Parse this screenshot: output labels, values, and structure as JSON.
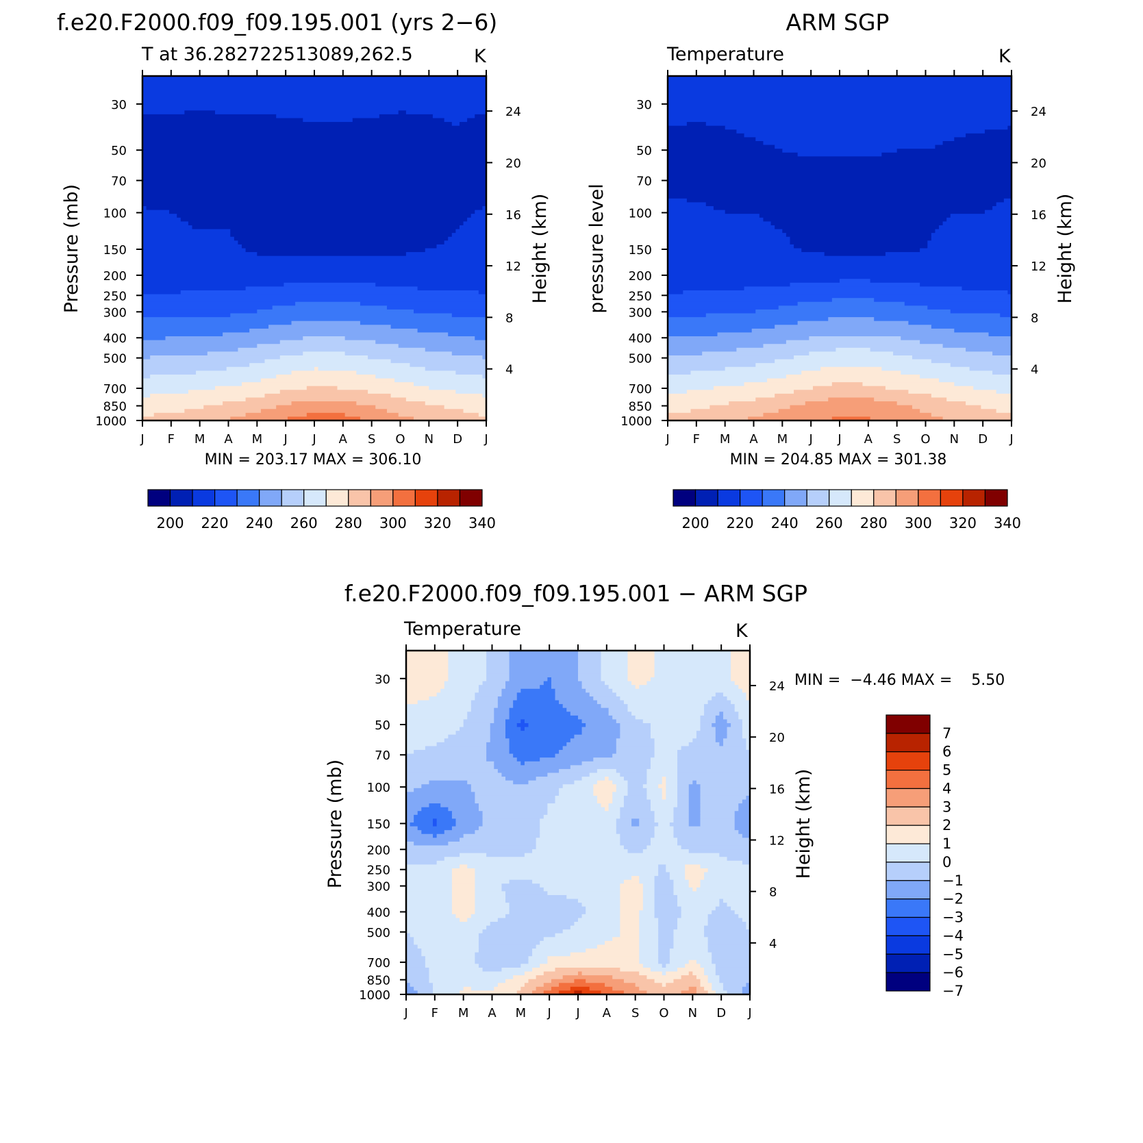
{
  "chart_data": [
    {
      "id": "model",
      "type": "heatmap",
      "title": "f.e20.F2000.f09_f09.195.001 (yrs 2−6)",
      "subtitle_left": "T at 36.282722513089,262.5",
      "subtitle_right": "K",
      "ylabel_left": "Pressure (mb)",
      "ylabel_right": "Height (km)",
      "minmax_text": "MIN = 203.17 MAX = 306.10",
      "x_ticks": [
        "J",
        "F",
        "M",
        "A",
        "M",
        "J",
        "J",
        "A",
        "S",
        "O",
        "N",
        "D",
        "J"
      ],
      "y_ticks": [
        "30",
        "50",
        "70",
        "100",
        "150",
        "200",
        "250",
        "300",
        "400",
        "500",
        "700",
        "850",
        "1000"
      ],
      "height_ticks": [
        "24",
        "20",
        "16",
        "12",
        "8",
        "4"
      ],
      "levels": [
        200,
        210,
        220,
        230,
        240,
        250,
        260,
        270,
        280,
        290,
        300,
        310,
        320,
        330,
        340
      ],
      "colorbar_labels": [
        "200",
        "220",
        "240",
        "260",
        "280",
        "300",
        "320",
        "340"
      ],
      "grid_pressure": [
        30,
        50,
        70,
        100,
        150,
        200,
        250,
        300,
        400,
        500,
        700,
        850,
        1000
      ],
      "values_by_level": [
        [
          211,
          211,
          211,
          211,
          211,
          212,
          213,
          213,
          212,
          211,
          211,
          211,
          211
        ],
        [
          206,
          206,
          205,
          206,
          206,
          205,
          205,
          205,
          205,
          205,
          207,
          209,
          206
        ],
        [
          205,
          205,
          205,
          205,
          204,
          204,
          204,
          204,
          204,
          205,
          206,
          206,
          205
        ],
        [
          211,
          210,
          209,
          209,
          206,
          205,
          205,
          205,
          205,
          206,
          207,
          209,
          211
        ],
        [
          212,
          212,
          211,
          211,
          209,
          208,
          208,
          208,
          208,
          209,
          210,
          211,
          212
        ],
        [
          213,
          213,
          213,
          213,
          214,
          215,
          216,
          216,
          215,
          214,
          213,
          213,
          213
        ],
        [
          221,
          221,
          222,
          222,
          224,
          226,
          227,
          227,
          226,
          224,
          223,
          222,
          221
        ],
        [
          227,
          227,
          228,
          228,
          230,
          233,
          235,
          234,
          233,
          231,
          229,
          228,
          227
        ],
        [
          239,
          240,
          241,
          242,
          245,
          248,
          251,
          250,
          248,
          245,
          243,
          241,
          239
        ],
        [
          250,
          251,
          252,
          254,
          257,
          261,
          264,
          263,
          260,
          257,
          254,
          252,
          250
        ],
        [
          266,
          267,
          269,
          271,
          274,
          278,
          281,
          280,
          277,
          274,
          270,
          268,
          266
        ],
        [
          275,
          276,
          279,
          282,
          286,
          291,
          295,
          294,
          290,
          285,
          281,
          278,
          275
        ],
        [
          282,
          284,
          287,
          291,
          295,
          301,
          305,
          304,
          299,
          293,
          288,
          285,
          282
        ]
      ]
    },
    {
      "id": "obs",
      "type": "heatmap",
      "title": "ARM SGP",
      "subtitle_left": "Temperature",
      "subtitle_right": "K",
      "ylabel_left": "pressure level",
      "ylabel_right": "Height (km)",
      "minmax_text": "MIN = 204.85 MAX = 301.38",
      "x_ticks": [
        "J",
        "F",
        "M",
        "A",
        "M",
        "J",
        "J",
        "A",
        "S",
        "O",
        "N",
        "D",
        "J"
      ],
      "y_ticks": [
        "30",
        "50",
        "70",
        "100",
        "150",
        "200",
        "250",
        "300",
        "400",
        "500",
        "700",
        "850",
        "1000"
      ],
      "height_ticks": [
        "24",
        "20",
        "16",
        "12",
        "8",
        "4"
      ],
      "levels": [
        200,
        210,
        220,
        230,
        240,
        250,
        260,
        270,
        280,
        290,
        300,
        310,
        320,
        330,
        340
      ],
      "colorbar_labels": [
        "200",
        "220",
        "240",
        "260",
        "280",
        "300",
        "320",
        "340"
      ],
      "grid_pressure": [
        30,
        50,
        70,
        100,
        150,
        200,
        250,
        300,
        400,
        500,
        700,
        850,
        1000
      ],
      "values_by_level": [
        [
          212,
          212,
          212,
          213,
          214,
          216,
          217,
          217,
          215,
          214,
          213,
          213,
          212
        ],
        [
          208,
          207,
          208,
          209,
          210,
          211,
          211,
          211,
          210,
          210,
          209,
          208,
          208
        ],
        [
          209,
          208,
          208,
          207,
          207,
          207,
          207,
          207,
          207,
          207,
          208,
          208,
          209
        ],
        [
          211,
          211,
          210,
          210,
          209,
          207,
          207,
          207,
          208,
          209,
          210,
          210,
          211
        ],
        [
          213,
          213,
          213,
          212,
          211,
          209,
          208,
          208,
          209,
          210,
          212,
          213,
          213
        ],
        [
          214,
          215,
          215,
          215,
          215,
          216,
          217,
          217,
          216,
          215,
          215,
          214,
          214
        ],
        [
          221,
          221,
          222,
          223,
          225,
          227,
          228,
          228,
          227,
          225,
          223,
          222,
          221
        ],
        [
          228,
          228,
          229,
          230,
          232,
          235,
          236,
          236,
          234,
          232,
          230,
          229,
          228
        ],
        [
          240,
          241,
          242,
          244,
          247,
          250,
          252,
          252,
          250,
          247,
          244,
          242,
          240
        ],
        [
          251,
          252,
          254,
          256,
          259,
          263,
          266,
          266,
          262,
          259,
          256,
          253,
          251
        ],
        [
          267,
          269,
          271,
          273,
          276,
          280,
          283,
          282,
          279,
          276,
          272,
          269,
          267
        ],
        [
          276,
          278,
          281,
          284,
          288,
          293,
          296,
          296,
          292,
          287,
          283,
          279,
          276
        ],
        [
          283,
          285,
          288,
          292,
          296,
          300,
          301,
          301,
          298,
          293,
          289,
          286,
          283
        ]
      ]
    },
    {
      "id": "diff",
      "type": "heatmap",
      "title": "f.e20.F2000.f09_f09.195.001 − ARM SGP",
      "subtitle_left": "Temperature",
      "subtitle_right": "K",
      "ylabel_left": "Pressure (mb)",
      "ylabel_right": "Height (km)",
      "minmax_text": "MIN =  −4.46 MAX =    5.50",
      "x_ticks": [
        "J",
        "F",
        "M",
        "A",
        "M",
        "J",
        "J",
        "A",
        "S",
        "O",
        "N",
        "D",
        "J"
      ],
      "y_ticks": [
        "30",
        "50",
        "70",
        "100",
        "150",
        "200",
        "250",
        "300",
        "400",
        "500",
        "700",
        "850",
        "1000"
      ],
      "height_ticks": [
        "24",
        "20",
        "16",
        "12",
        "8",
        "4"
      ],
      "levels": [
        -7,
        -6,
        -5,
        -4,
        -3,
        -2,
        -1,
        0,
        1,
        2,
        3,
        4,
        5,
        6,
        7
      ],
      "colorbar_labels": [
        "7",
        "6",
        "5",
        "4",
        "3",
        "2",
        "1",
        "0",
        "−1",
        "−2",
        "−3",
        "−4",
        "−5",
        "−6",
        "−7"
      ],
      "grid_pressure": [
        30,
        50,
        70,
        100,
        150,
        200,
        250,
        300,
        400,
        500,
        700,
        850,
        1000
      ],
      "values_by_level": [
        [
          0.6,
          0.4,
          -0.4,
          -1.2,
          -2.6,
          -3.0,
          -2.0,
          -0.8,
          0.3,
          -0.2,
          -0.6,
          -0.3,
          0.6
        ],
        [
          -0.4,
          -0.6,
          -1.0,
          -2.0,
          -4.2,
          -3.4,
          -3.2,
          -2.6,
          -1.2,
          -0.8,
          -0.4,
          -2.6,
          -0.4
        ],
        [
          -1.0,
          -1.2,
          -1.4,
          -2.2,
          -3.4,
          -3.2,
          -2.6,
          -2.2,
          -1.6,
          -0.7,
          -1.4,
          -1.8,
          -1.0
        ],
        [
          -1.8,
          -2.2,
          -2.2,
          -1.4,
          -2.0,
          -1.2,
          -0.6,
          0.8,
          -1.6,
          0.3,
          -2.2,
          -1.6,
          -1.8
        ],
        [
          -2.8,
          -4.2,
          -2.6,
          -1.8,
          -1.4,
          -0.8,
          -1.0,
          -0.4,
          -2.2,
          -0.6,
          -2.2,
          -1.4,
          -2.8
        ],
        [
          -1.6,
          -1.8,
          -1.4,
          -1.2,
          -1.2,
          -0.8,
          -0.8,
          -0.6,
          -1.2,
          -0.6,
          -1.2,
          -1.2,
          -1.6
        ],
        [
          -0.8,
          -0.6,
          0.4,
          -0.6,
          -0.6,
          -0.6,
          -0.8,
          -0.6,
          -0.4,
          -1.2,
          0.6,
          -0.6,
          -0.8
        ],
        [
          -0.6,
          -0.8,
          0.5,
          -0.8,
          -1.4,
          -0.8,
          -0.8,
          -0.6,
          0.6,
          -1.6,
          0.2,
          -0.8,
          -0.6
        ],
        [
          -0.8,
          -0.6,
          0.4,
          -0.6,
          -1.2,
          -1.4,
          -1.2,
          -0.4,
          0.4,
          -1.6,
          -0.6,
          -1.2,
          -0.8
        ],
        [
          -1.0,
          -0.6,
          -0.4,
          -1.4,
          -1.6,
          -1.2,
          -0.8,
          -0.2,
          0.2,
          -1.2,
          -0.6,
          -1.6,
          -1.0
        ],
        [
          -1.4,
          -0.8,
          -0.6,
          -1.6,
          -1.4,
          0.2,
          0.4,
          0.4,
          0.2,
          -1.4,
          0.2,
          -1.6,
          -1.4
        ],
        [
          -2.0,
          -0.8,
          -0.4,
          -0.6,
          0.6,
          1.8,
          3.0,
          2.4,
          1.6,
          0.6,
          1.6,
          -1.2,
          -2.0
        ],
        [
          -2.6,
          -1.0,
          0.3,
          0.3,
          1.2,
          3.6,
          5.5,
          3.8,
          2.6,
          1.4,
          2.6,
          -0.6,
          -2.6
        ]
      ]
    }
  ],
  "colors": {
    "model_obs_scale": [
      "#00007f",
      "#0020b4",
      "#0a3ae0",
      "#1e55f5",
      "#3a78f8",
      "#80a8f8",
      "#b6cffb",
      "#d6e8fb",
      "#fde9d7",
      "#f9c4a9",
      "#f69e78",
      "#f3703f",
      "#e6420c",
      "#b82300",
      "#800000"
    ],
    "diff_scale": [
      "#00007f",
      "#0020b4",
      "#0a3ae0",
      "#1e55f5",
      "#3a78f8",
      "#80a8f8",
      "#b6cffb",
      "#d6e8fb",
      "#fde9d7",
      "#f9c4a9",
      "#f69e78",
      "#f3703f",
      "#e6420c",
      "#b82300",
      "#800000"
    ]
  }
}
